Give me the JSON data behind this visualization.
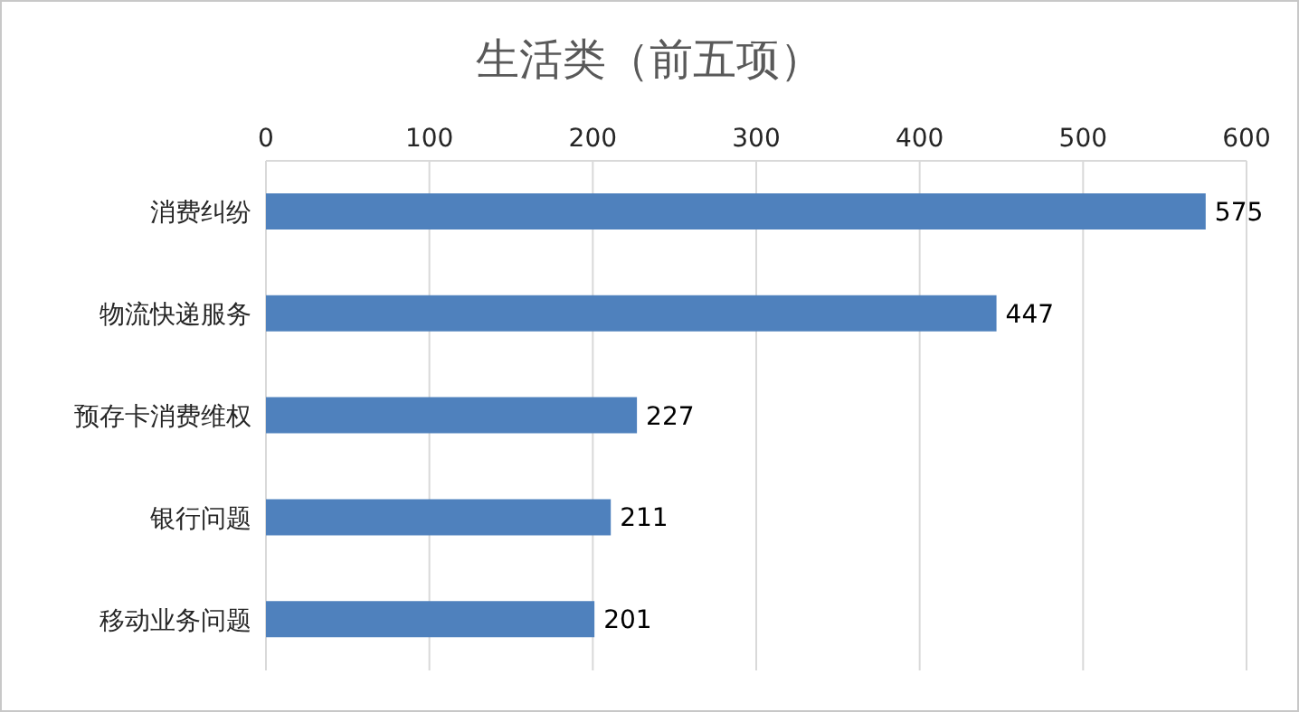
{
  "chart_data": {
    "type": "bar",
    "orientation": "horizontal",
    "title": "生活类（前五项）",
    "categories": [
      "消费纠纷",
      "物流快递服务",
      "预存卡消费维权",
      "银行问题",
      "移动业务问题"
    ],
    "values": [
      575,
      447,
      227,
      211,
      201
    ],
    "color": "#4f81bd",
    "xlim": [
      0,
      600
    ],
    "xticks": [
      0,
      100,
      200,
      300,
      400,
      500,
      600
    ],
    "grid": "x",
    "data_labels": true
  }
}
